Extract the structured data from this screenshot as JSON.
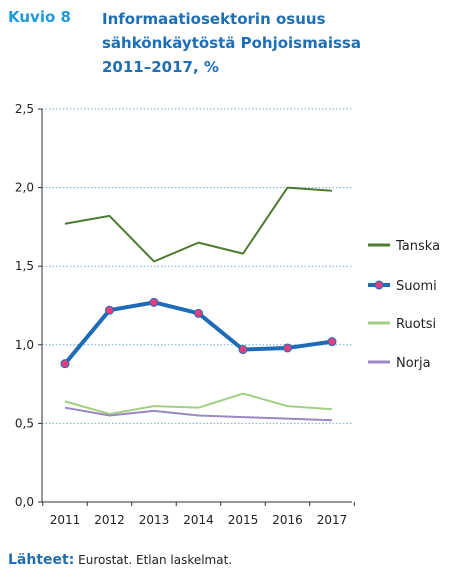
{
  "figure": {
    "label": "Kuvio 8",
    "title_lines": [
      "Informaatiosektorin osuus",
      "sähkönkäytöstä Pohjoismaissa",
      "2011–2017, %"
    ]
  },
  "source": {
    "label": "Lähteet:",
    "text": "Eurostat. Etlan laskelmat."
  },
  "chart_data": {
    "type": "line",
    "title": "Informaatiosektorin osuus sähkönkäytöstä Pohjoismaissa 2011–2017, %",
    "x": [
      2011,
      2012,
      2013,
      2014,
      2015,
      2016,
      2017
    ],
    "x_tick_labels": [
      "2011",
      "2012",
      "2013",
      "2014",
      "2015",
      "2016",
      "2017"
    ],
    "ylim": [
      0,
      2.5
    ],
    "y_ticks": [
      0,
      0.5,
      1.0,
      1.5,
      2.0,
      2.5
    ],
    "y_tick_labels": [
      "0,0",
      "0,5",
      "1,0",
      "1,5",
      "2,0",
      "2,5"
    ],
    "grid": "horizontal dotted",
    "legend_position": "right",
    "series": [
      {
        "name": "Tanska",
        "color": "#4f7a32",
        "values": [
          1.77,
          1.82,
          1.53,
          1.65,
          1.58,
          2.0,
          1.98
        ],
        "markers": false,
        "width": "thin"
      },
      {
        "name": "Suomi",
        "color": "#1f6bb5",
        "marker_color": "#e0407e",
        "values": [
          0.88,
          1.22,
          1.27,
          1.2,
          0.97,
          0.98,
          1.02
        ],
        "markers": true,
        "width": "thick"
      },
      {
        "name": "Ruotsi",
        "color": "#a3cf85",
        "values": [
          0.64,
          0.56,
          0.61,
          0.6,
          0.69,
          0.61,
          0.59
        ],
        "markers": false,
        "width": "thin"
      },
      {
        "name": "Norja",
        "color": "#9a88c2",
        "values": [
          0.6,
          0.55,
          0.58,
          0.55,
          0.54,
          0.53,
          0.52
        ],
        "markers": false,
        "width": "thin"
      }
    ]
  }
}
